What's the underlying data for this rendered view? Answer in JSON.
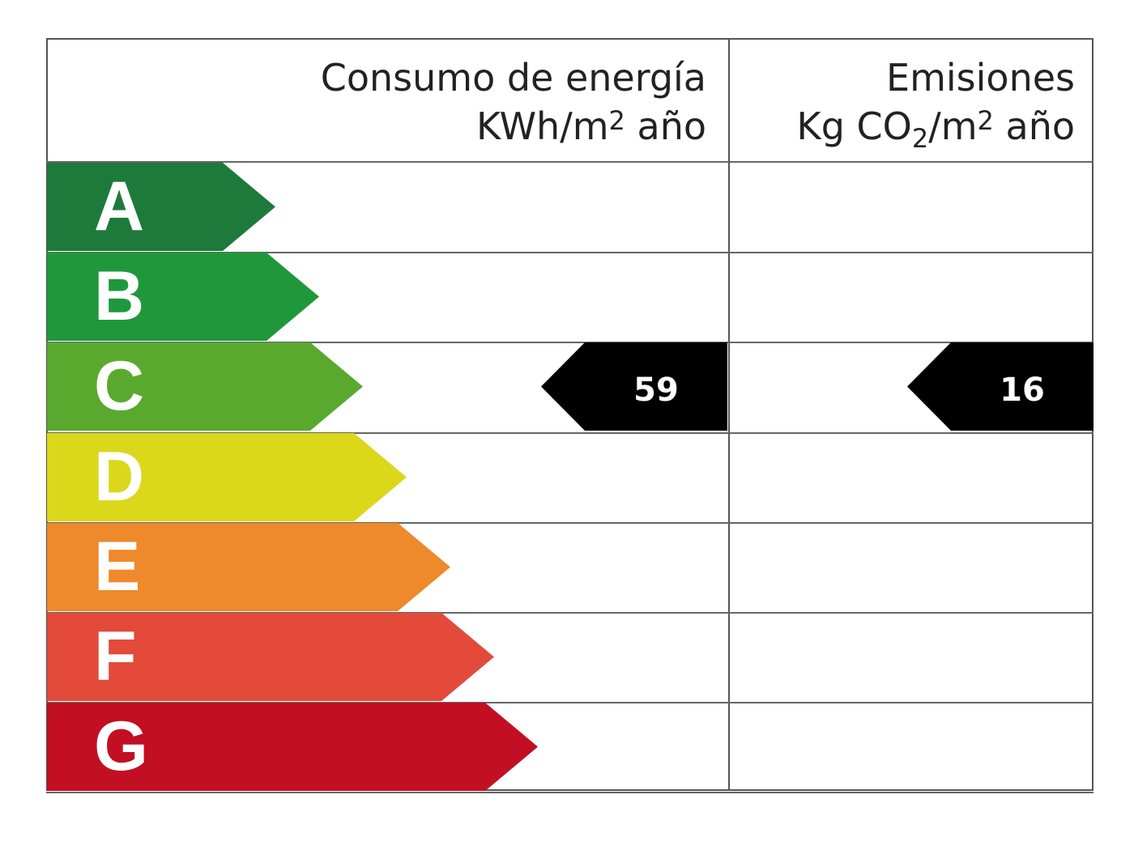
{
  "header": {
    "energy_line1": "Consumo de energía",
    "energy_line2_prefix": "KWh/m",
    "energy_line2_sup": "2",
    "energy_line2_suffix": " año",
    "emissions_line1": "Emisiones",
    "emissions_line2_prefix": "Kg CO",
    "emissions_line2_sub": "2",
    "emissions_line2_mid": "/m",
    "emissions_line2_sup": "2",
    "emissions_line2_suffix": " año"
  },
  "ratings": [
    {
      "letter": "A",
      "color": "#1e7a3a"
    },
    {
      "letter": "B",
      "color": "#1f983c"
    },
    {
      "letter": "C",
      "color": "#59a92e"
    },
    {
      "letter": "D",
      "color": "#dbd71b"
    },
    {
      "letter": "E",
      "color": "#ee892c"
    },
    {
      "letter": "F",
      "color": "#e34a3a"
    },
    {
      "letter": "G",
      "color": "#c20f24"
    }
  ],
  "energy_rating": {
    "letter": "C",
    "value": "59"
  },
  "emissions_rating": {
    "letter": "C",
    "value": "16"
  }
}
